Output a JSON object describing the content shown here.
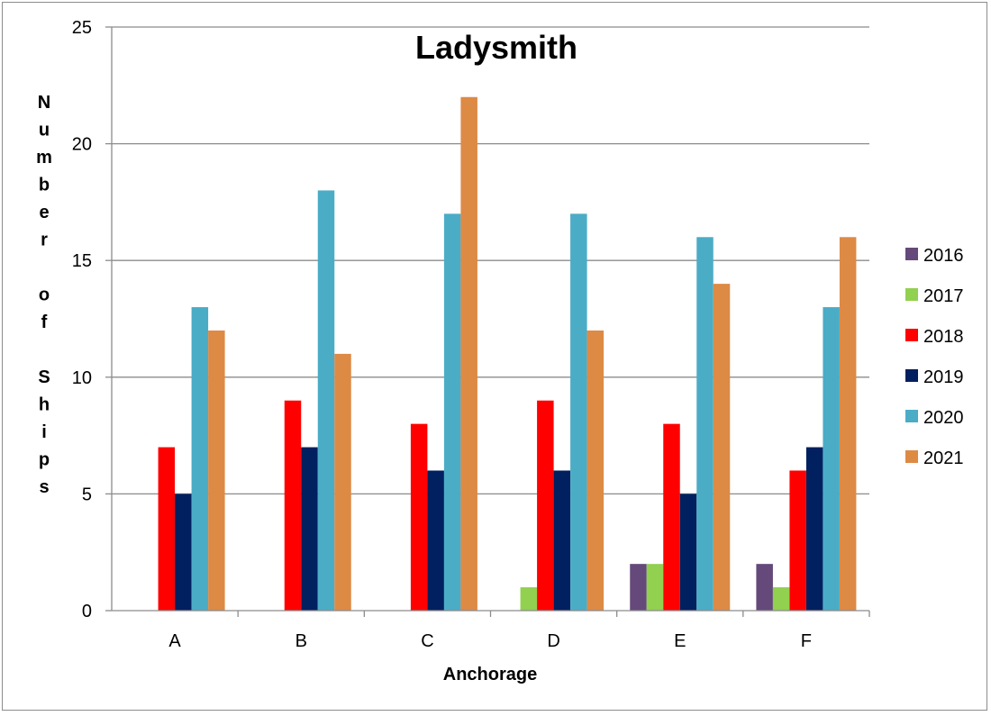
{
  "chart_data": {
    "type": "bar",
    "title": "Ladysmith",
    "xlabel": "Anchorage",
    "ylabel": "Number of Ships",
    "ylim": [
      0,
      25
    ],
    "yticks": [
      0,
      5,
      10,
      15,
      20,
      25
    ],
    "grid": true,
    "legend_position": "right",
    "categories": [
      "A",
      "B",
      "C",
      "D",
      "E",
      "F"
    ],
    "series": [
      {
        "name": "2016",
        "color": "#65497a",
        "values": [
          0,
          0,
          0,
          0,
          2,
          2
        ]
      },
      {
        "name": "2017",
        "color": "#92d050",
        "values": [
          0,
          0,
          0,
          1,
          2,
          1
        ]
      },
      {
        "name": "2018",
        "color": "#ff0000",
        "values": [
          7,
          9,
          8,
          9,
          8,
          6
        ]
      },
      {
        "name": "2019",
        "color": "#002060",
        "values": [
          5,
          7,
          6,
          6,
          5,
          7
        ]
      },
      {
        "name": "2020",
        "color": "#4bacc6",
        "values": [
          13,
          18,
          17,
          17,
          16,
          13
        ]
      },
      {
        "name": "2021",
        "color": "#dd8a45",
        "values": [
          12,
          11,
          22,
          12,
          14,
          16
        ]
      }
    ]
  }
}
